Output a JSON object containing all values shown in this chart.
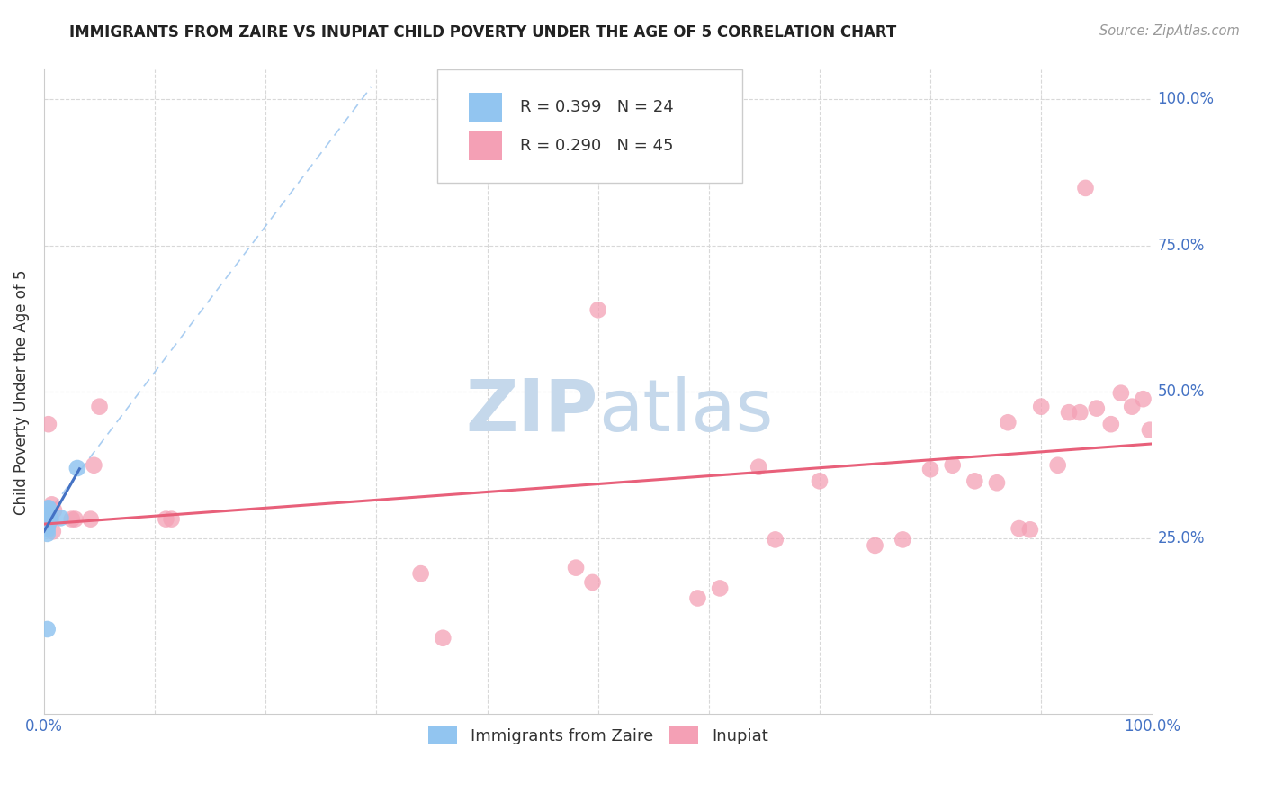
{
  "title": "IMMIGRANTS FROM ZAIRE VS INUPIAT CHILD POVERTY UNDER THE AGE OF 5 CORRELATION CHART",
  "source": "Source: ZipAtlas.com",
  "ylabel": "Child Poverty Under the Age of 5",
  "xlim": [
    0.0,
    1.0
  ],
  "ylim": [
    -0.05,
    1.05
  ],
  "legend_label1": "Immigrants from Zaire",
  "legend_label2": "Inupiat",
  "R1": "0.399",
  "N1": 24,
  "R2": "0.290",
  "N2": 45,
  "color1": "#92c5f0",
  "color2": "#f4a0b5",
  "trendline1_color": "#4472C4",
  "trendline2_color": "#e8607a",
  "dashed_line_color": "#a0c8f0",
  "blue_scatter_x": [
    0.002,
    0.003,
    0.004,
    0.003,
    0.004,
    0.005,
    0.004,
    0.003,
    0.003,
    0.004,
    0.003,
    0.004,
    0.005,
    0.003,
    0.003,
    0.004,
    0.003,
    0.03,
    0.004,
    0.004,
    0.003,
    0.004,
    0.003,
    0.015
  ],
  "blue_scatter_y": [
    0.29,
    0.29,
    0.29,
    0.29,
    0.3,
    0.285,
    0.288,
    0.278,
    0.285,
    0.275,
    0.27,
    0.28,
    0.285,
    0.265,
    0.258,
    0.285,
    0.285,
    0.37,
    0.302,
    0.283,
    0.283,
    0.283,
    0.095,
    0.285
  ],
  "pink_scatter_x": [
    0.004,
    0.006,
    0.007,
    0.004,
    0.008,
    0.005,
    0.009,
    0.006,
    0.025,
    0.028,
    0.045,
    0.042,
    0.05,
    0.11,
    0.115,
    0.34,
    0.36,
    0.48,
    0.495,
    0.5,
    0.59,
    0.61,
    0.645,
    0.66,
    0.7,
    0.75,
    0.775,
    0.8,
    0.82,
    0.84,
    0.86,
    0.87,
    0.88,
    0.89,
    0.9,
    0.915,
    0.925,
    0.935,
    0.94,
    0.95,
    0.963,
    0.972,
    0.982,
    0.992,
    0.998
  ],
  "pink_scatter_y": [
    0.445,
    0.285,
    0.308,
    0.278,
    0.262,
    0.283,
    0.298,
    0.283,
    0.283,
    0.283,
    0.375,
    0.283,
    0.475,
    0.283,
    0.283,
    0.19,
    0.08,
    0.2,
    0.175,
    0.64,
    0.148,
    0.165,
    0.372,
    0.248,
    0.348,
    0.238,
    0.248,
    0.368,
    0.375,
    0.348,
    0.345,
    0.448,
    0.267,
    0.265,
    0.475,
    0.375,
    0.465,
    0.465,
    0.848,
    0.472,
    0.445,
    0.498,
    0.475,
    0.488,
    0.435
  ]
}
